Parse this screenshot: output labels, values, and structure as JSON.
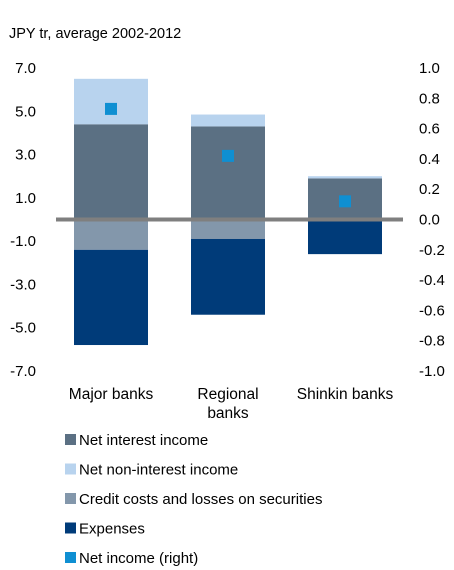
{
  "chart_data": {
    "type": "bar",
    "stacked": true,
    "unit_label": "JPY tr, average 2002-2012",
    "categories": [
      "Major banks",
      "Regional banks",
      "Shinkin banks"
    ],
    "category_lines": [
      [
        "Major banks"
      ],
      [
        "Regional",
        "banks"
      ],
      [
        "Shinkin banks"
      ]
    ],
    "y_left": {
      "ticks": [
        "7.0",
        "5.0",
        "3.0",
        "1.0",
        "-1.0",
        "-3.0",
        "-5.0",
        "-7.0"
      ],
      "ylim": [
        -7,
        7
      ]
    },
    "y_right": {
      "ticks": [
        "1.0",
        "0.8",
        "0.6",
        "0.4",
        "0.2",
        "0.0",
        "-0.2",
        "-0.4",
        "-0.6",
        "-0.8",
        "-1.0"
      ],
      "ylim": [
        -1,
        1
      ]
    },
    "series": [
      {
        "name": "Net interest income",
        "axis": "left",
        "color": "#5b7083",
        "values": [
          4.4,
          4.3,
          1.9
        ]
      },
      {
        "name": "Net non-interest income",
        "axis": "left",
        "color": "#b8d3ee",
        "values": [
          2.1,
          0.55,
          0.1
        ]
      },
      {
        "name": "Credit costs and losses on securities",
        "axis": "left",
        "color": "#8397ab",
        "values": [
          -1.4,
          -0.9,
          -0.05
        ]
      },
      {
        "name": "Expenses",
        "axis": "left",
        "color": "#003b79",
        "values": [
          -4.4,
          -3.5,
          -1.55
        ]
      },
      {
        "name": "Net income (right)",
        "axis": "right",
        "marker": "square",
        "color": "#0f8fd2",
        "values": [
          0.73,
          0.42,
          0.12
        ]
      }
    ],
    "zero_line_color": "#7f7f7f",
    "legend_position": "bottom"
  }
}
